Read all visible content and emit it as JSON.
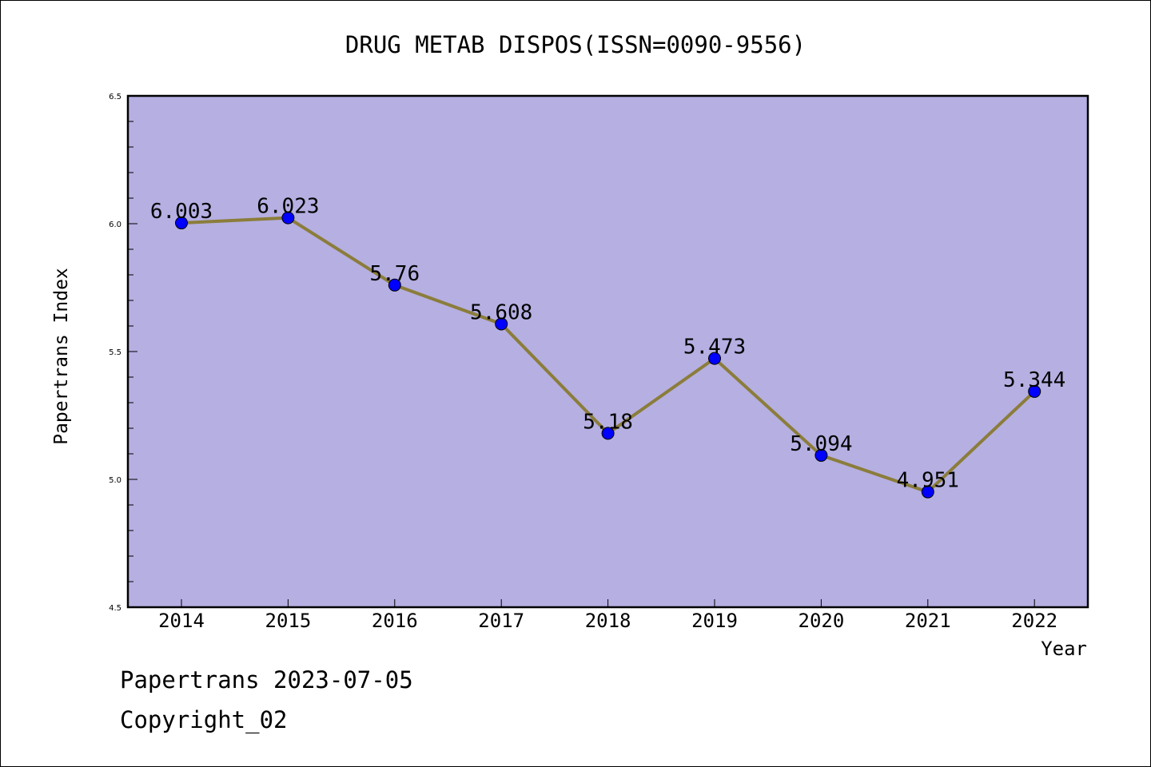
{
  "chart_data": {
    "type": "line",
    "title": "DRUG METAB DISPOS(ISSN=0090-9556)",
    "xlabel": "Year",
    "ylabel": "Papertrans Index",
    "categories": [
      "2014",
      "2015",
      "2016",
      "2017",
      "2018",
      "2019",
      "2020",
      "2021",
      "2022"
    ],
    "values": [
      6.003,
      6.023,
      5.76,
      5.608,
      5.18,
      5.473,
      5.094,
      4.951,
      5.344
    ],
    "data_labels": [
      "6.003",
      "6.023",
      "5.76",
      "5.608",
      "5.18",
      "5.473",
      "5.094",
      "4.951",
      "5.344"
    ],
    "ylim": [
      4.5,
      6.5
    ],
    "yticks": [
      "4.5",
      "5.0",
      "5.5",
      "6.0",
      "6.5"
    ],
    "grid": false,
    "colors": {
      "plot_background": "#b5afe2",
      "line": "#8b7d3a",
      "marker": "#0000ff"
    }
  },
  "footer": {
    "line1": "Papertrans 2023-07-05",
    "line2": "Copyright_02"
  }
}
